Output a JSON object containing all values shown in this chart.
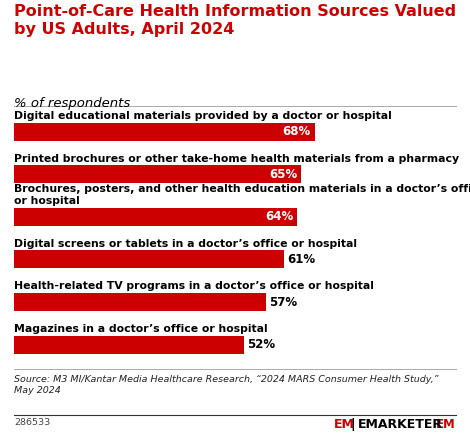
{
  "title": "Point-of-Care Health Information Sources Valued\nby US Adults, April 2024",
  "subtitle": "% of respondents",
  "categories": [
    "Digital educational materials provided by a doctor or hospital",
    "Printed brochures or other take-home health materials from a pharmacy",
    "Brochures, posters, and other health education materials in a doctor’s office\nor hospital",
    "Digital screens or tablets in a doctor’s office or hospital",
    "Health-related TV programs in a doctor’s office or hospital",
    "Magazines in a doctor’s office or hospital"
  ],
  "values": [
    68,
    65,
    64,
    61,
    57,
    52
  ],
  "bar_color": "#cc0000",
  "title_color": "#cc0000",
  "source_text": "Source: M3 MI/Kantar Media Healthcare Research, “2024 MARS Consumer Health Study,”\nMay 2024",
  "footnote": "286533",
  "emarketer_text": "EMARKETER",
  "background_color": "#ffffff",
  "label_fontsize": 7.8,
  "value_fontsize": 8.5,
  "title_fontsize": 11.5,
  "subtitle_fontsize": 9.5,
  "source_fontsize": 6.8,
  "footnote_fontsize": 6.8
}
